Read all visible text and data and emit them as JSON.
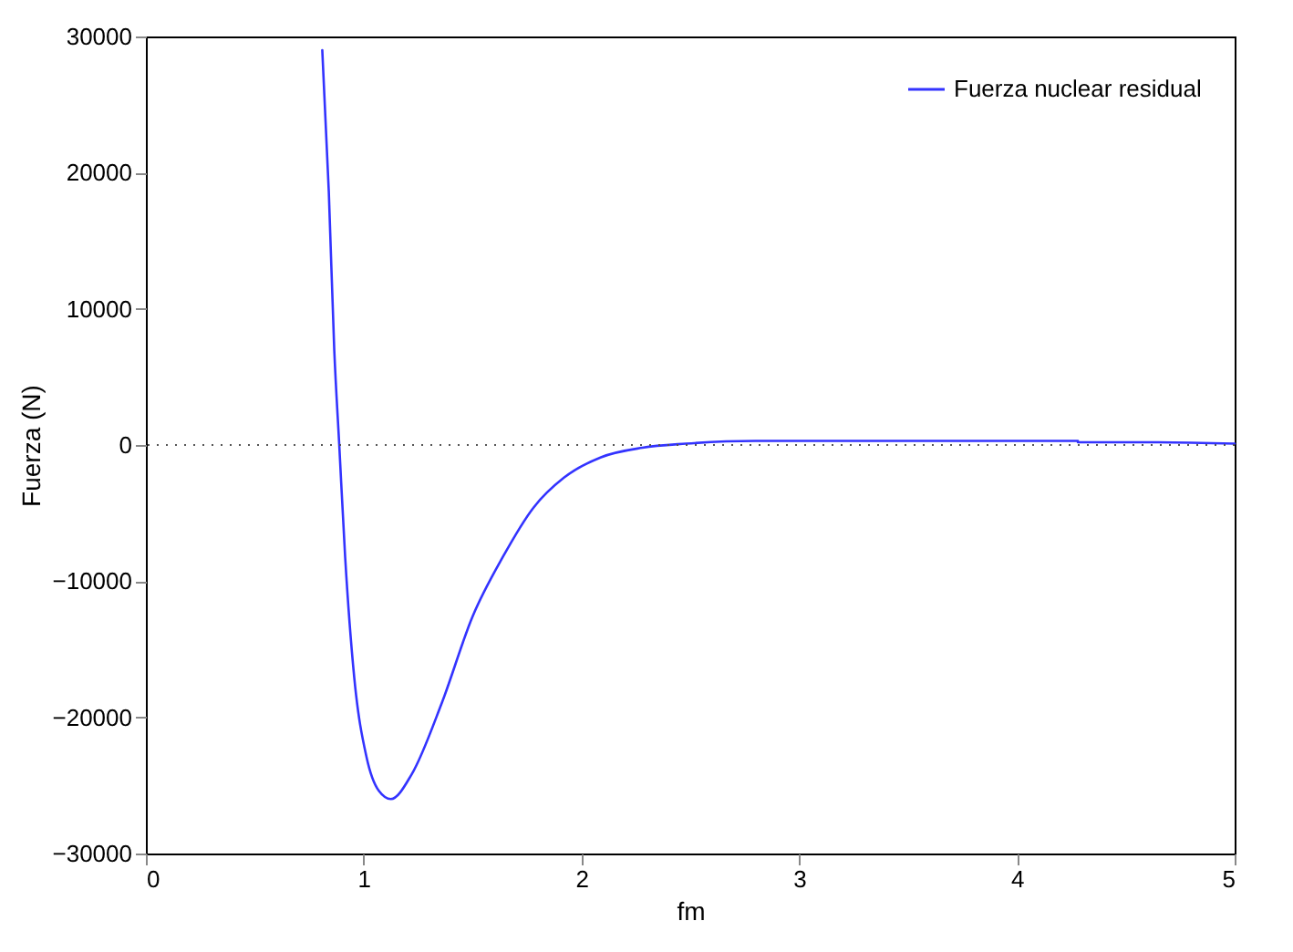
{
  "chart_data": {
    "type": "line",
    "xlabel": "fm",
    "ylabel": "Fuerza (N)",
    "xlim": [
      0,
      5
    ],
    "xticks": [
      0,
      1,
      2,
      3,
      4,
      5
    ],
    "ylim": [
      -30000,
      30000
    ],
    "yticks": [
      -30000,
      -20000,
      -10000,
      0,
      10000,
      20000,
      30000
    ],
    "grid": false,
    "legend": "top right",
    "line_style": "solid",
    "ref_lines": [
      {
        "axis": "y",
        "value": 0,
        "color": "#555555",
        "line_style": "dotted"
      }
    ],
    "series": [
      {
        "name": "Fuerza nuclear residual",
        "color": "#3333ff",
        "x": [
          0.81,
          0.84,
          0.865,
          0.888,
          0.915,
          0.957,
          1.013,
          1.07,
          1.125,
          1.22,
          1.36,
          1.5,
          1.64,
          1.78,
          1.92,
          2.09,
          2.28,
          2.48,
          2.8,
          3.2,
          3.6,
          4.0,
          4.28,
          4.28,
          4.6,
          5.0
        ],
        "values": [
          29000,
          18600,
          7000,
          0,
          -8200,
          -17100,
          -22900,
          -25400,
          -26000,
          -24200,
          -18900,
          -12600,
          -8200,
          -4600,
          -2400,
          -900,
          -200,
          100,
          300,
          300,
          300,
          300,
          300,
          200,
          200,
          100
        ]
      }
    ]
  }
}
